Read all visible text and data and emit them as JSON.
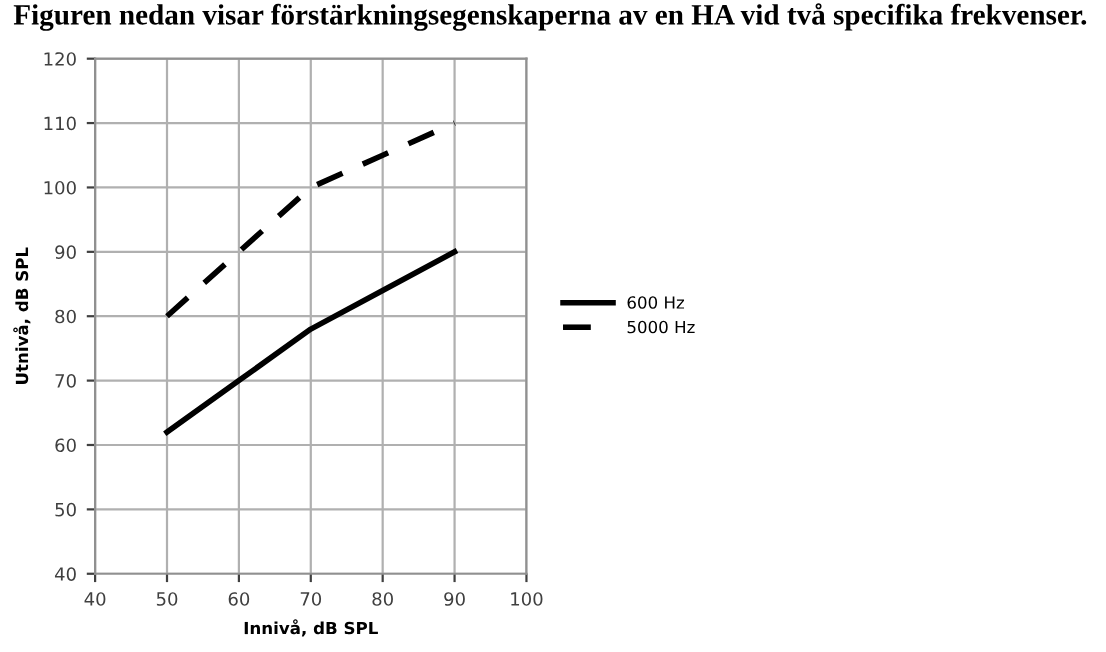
{
  "chart_data": {
    "type": "line",
    "title": "Figuren nedan visar förstärkningsegenskaperna av en HA vid två specifika frekvenser.",
    "xlabel": "Innivå, dB SPL",
    "ylabel": "Utnivå, dB SPL",
    "x": [
      50,
      60,
      70,
      80,
      90
    ],
    "series": [
      {
        "name": "600 Hz",
        "color": "#000000",
        "values": [
          62,
          70,
          78,
          84,
          90
        ],
        "line_style": "solid"
      },
      {
        "name": "5000 Hz",
        "color": "#000000",
        "values": [
          80,
          90,
          100,
          105,
          110
        ],
        "line_style": "dashed"
      }
    ],
    "xlim": [
      40,
      100
    ],
    "xticks": [
      40,
      50,
      60,
      70,
      80,
      90,
      100
    ],
    "ylim": [
      40,
      120
    ],
    "yticks": [
      40,
      50,
      60,
      70,
      80,
      90,
      100,
      110,
      120
    ],
    "grid": true,
    "legend": "right",
    "marker": "none"
  }
}
